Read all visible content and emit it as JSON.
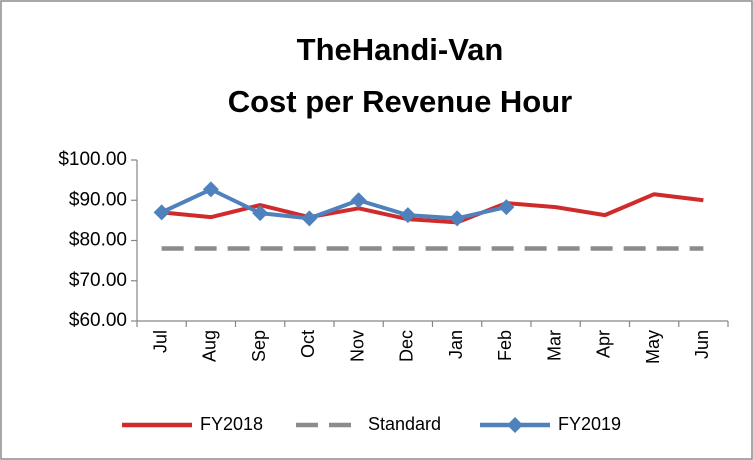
{
  "chart_data": {
    "type": "line",
    "title": [
      "TheHandi-Van",
      "Cost per Revenue Hour"
    ],
    "categories": [
      "Jul",
      "Aug",
      "Sep",
      "Oct",
      "Nov",
      "Dec",
      "Jan",
      "Feb",
      "Mar",
      "Apr",
      "May",
      "Jun"
    ],
    "series": [
      {
        "name": "FY2018",
        "color": "#d02b2b",
        "dashed": false,
        "marker": null,
        "values": [
          87.0,
          85.8,
          88.8,
          85.8,
          88.0,
          85.3,
          84.5,
          89.3,
          88.3,
          86.3,
          91.5,
          90.0
        ]
      },
      {
        "name": "Standard",
        "color": "#8c8c8c",
        "dashed": true,
        "marker": null,
        "values": [
          78,
          78,
          78,
          78,
          78,
          78,
          78,
          78,
          78,
          78,
          78,
          78
        ]
      },
      {
        "name": "FY2019",
        "color": "#4f81bd",
        "dashed": false,
        "marker": "diamond",
        "values": [
          87.0,
          92.7,
          86.8,
          85.5,
          90.0,
          86.3,
          85.5,
          88.3,
          null,
          null,
          null,
          null
        ]
      }
    ],
    "ylim": [
      60,
      100
    ],
    "yticks": [
      {
        "value": 60,
        "label": "$60.00"
      },
      {
        "value": 70,
        "label": "$70.00"
      },
      {
        "value": 80,
        "label": "$80.00"
      },
      {
        "value": 90,
        "label": "$90.00"
      },
      {
        "value": 100,
        "label": "$100.00"
      }
    ],
    "grid": false,
    "legend": "bottom"
  }
}
